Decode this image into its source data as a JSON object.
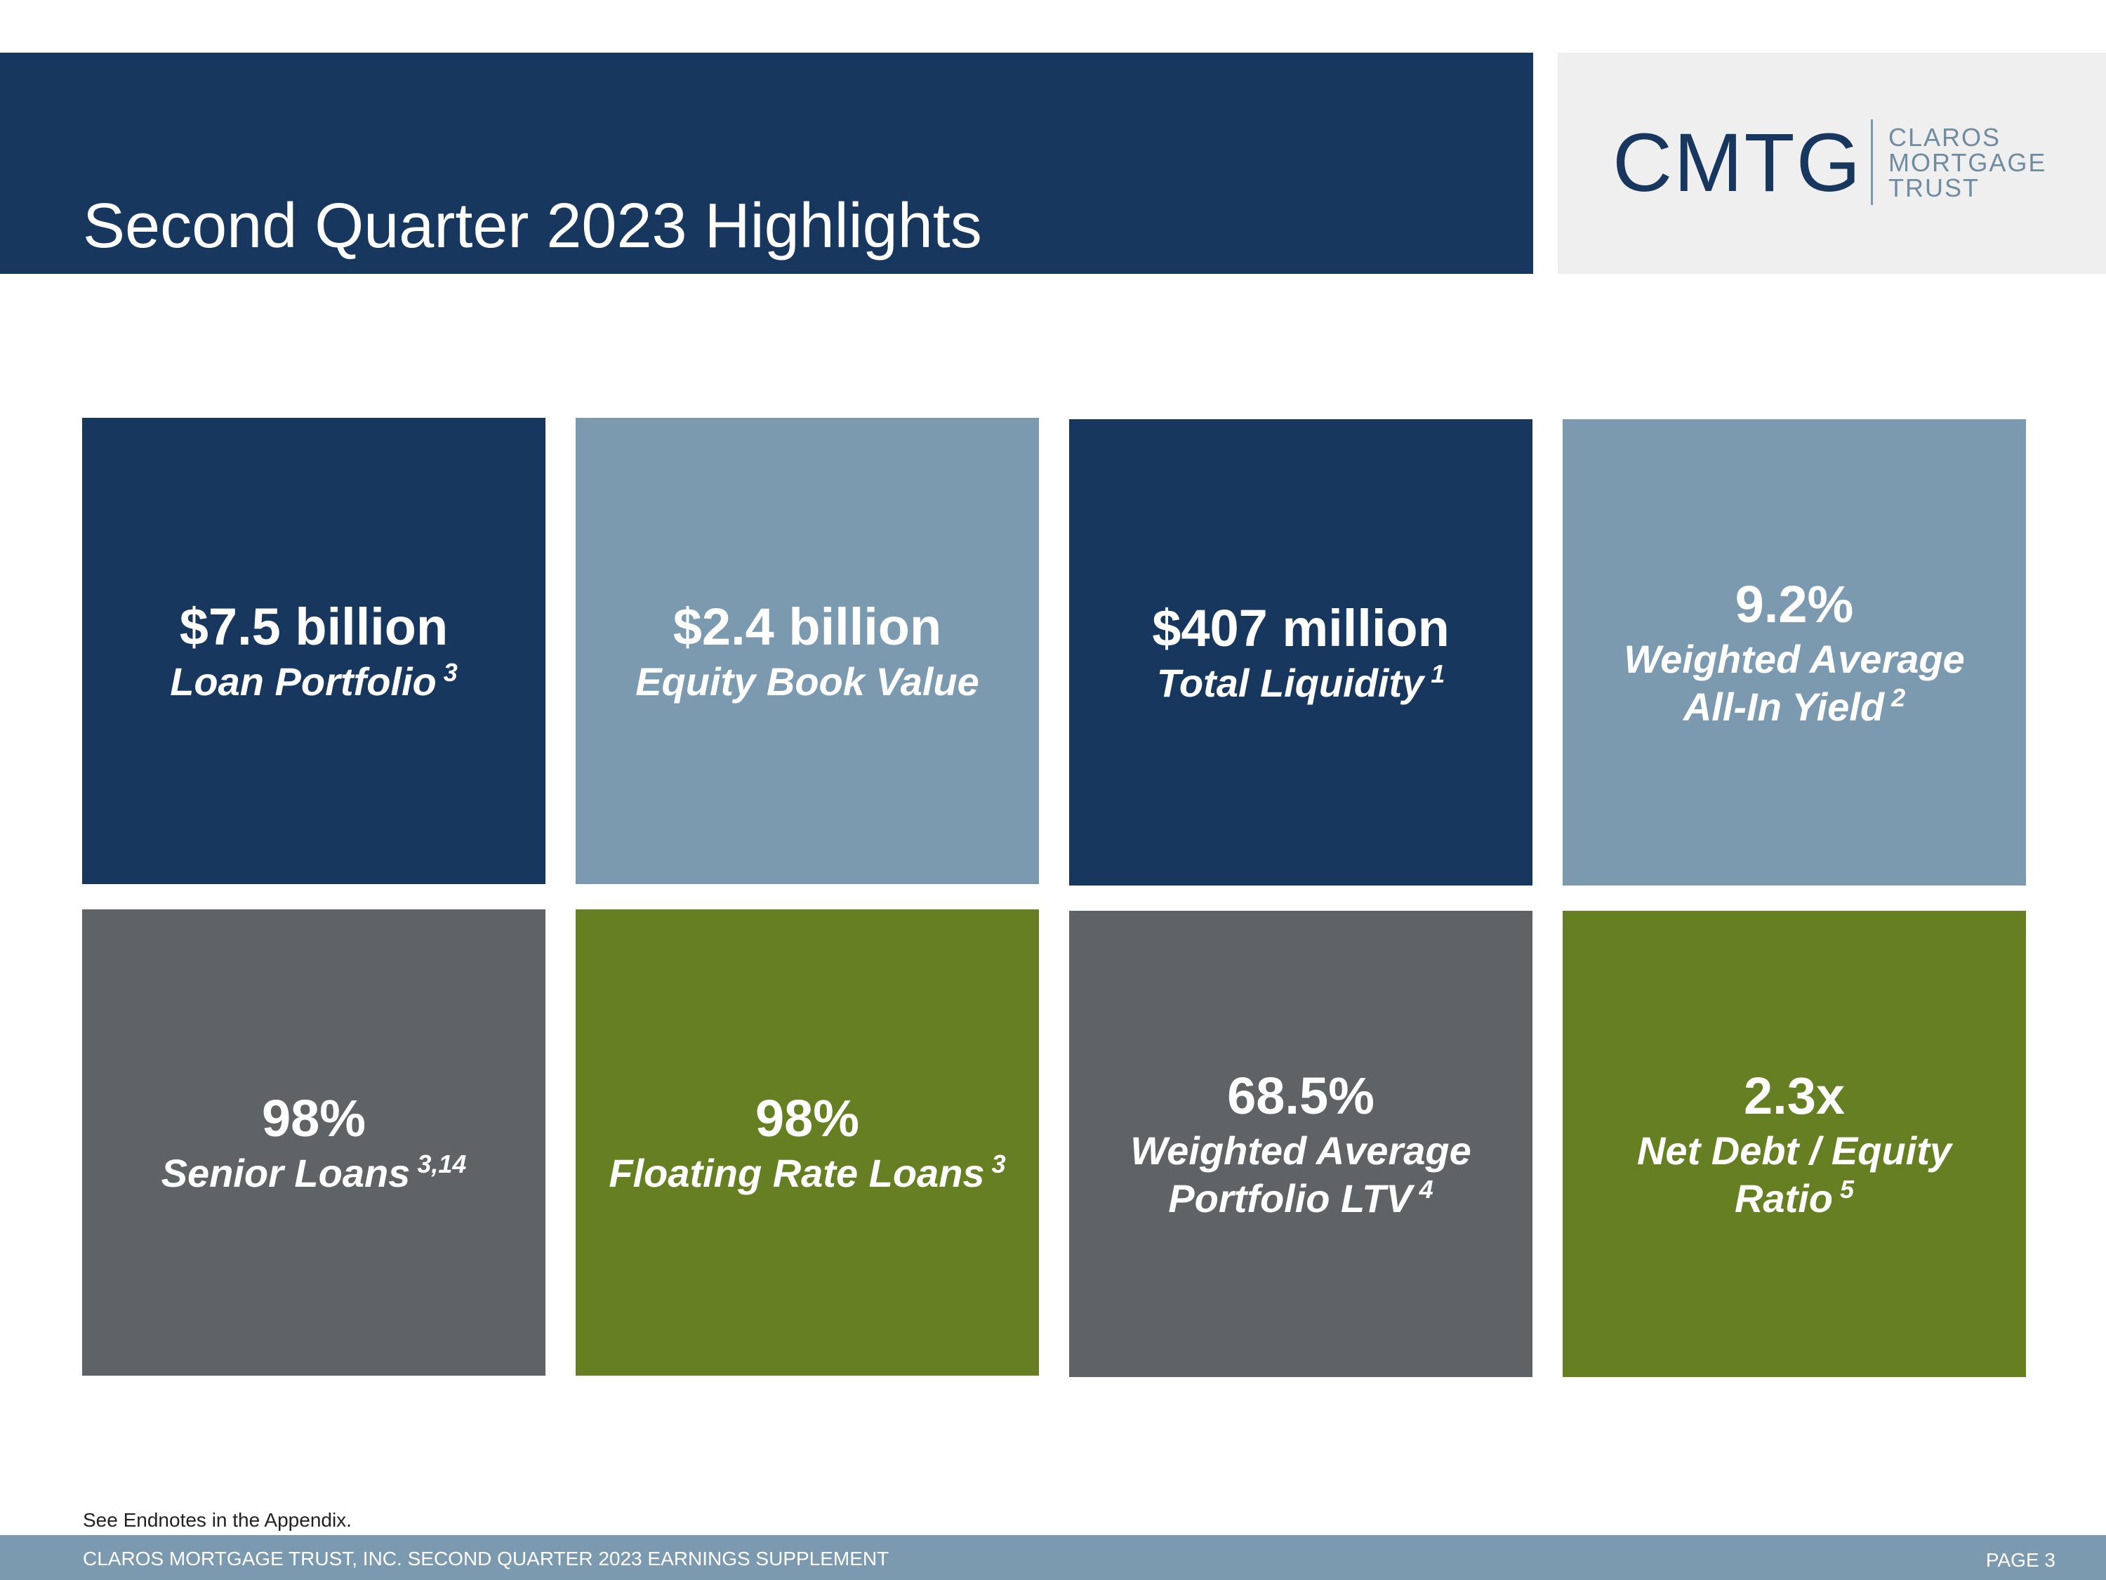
{
  "header": {
    "title": "Second Quarter 2023 Highlights"
  },
  "logo": {
    "mark": "CMTG",
    "line1": "CLAROS",
    "line2": "MORTGAGE",
    "line3": "TRUST"
  },
  "colors": {
    "navy": "#17375e",
    "steel_blue": "#7b9ab0",
    "grey": "#5f6366",
    "olive_green": "#667f22",
    "logo_panel": "#efefef"
  },
  "tiles": [
    {
      "value": "$7.5 billion",
      "label_line1": "Loan Portfolio",
      "label_line2": "",
      "note": "3",
      "color": "navy"
    },
    {
      "value": "$2.4 billion",
      "label_line1": "Equity Book Value",
      "label_line2": "",
      "note": "",
      "color": "steel_blue"
    },
    {
      "value": "$407 million",
      "label_line1": "Total Liquidity",
      "label_line2": "",
      "note": "1",
      "color": "navy"
    },
    {
      "value": "9.2%",
      "label_line1": "Weighted Average",
      "label_line2": "All-In Yield",
      "note": "2",
      "color": "steel_blue"
    },
    {
      "value": "98%",
      "label_line1": "Senior Loans",
      "label_line2": "",
      "note": "3,14",
      "color": "grey"
    },
    {
      "value": "98%",
      "label_line1": "Floating Rate Loans",
      "label_line2": "",
      "note": "3",
      "color": "olive_green"
    },
    {
      "value": "68.5%",
      "label_line1": "Weighted Average",
      "label_line2": "Portfolio LTV",
      "note": "4",
      "color": "grey"
    },
    {
      "value": "2.3x",
      "label_line1": "Net Debt / Equity",
      "label_line2": "Ratio",
      "note": "5",
      "color": "olive_green"
    }
  ],
  "endnote": "See Endnotes in the Appendix.",
  "footer": {
    "text": "CLAROS MORTGAGE TRUST, INC. SECOND QUARTER 2023 EARNINGS SUPPLEMENT",
    "page": "PAGE 3"
  }
}
